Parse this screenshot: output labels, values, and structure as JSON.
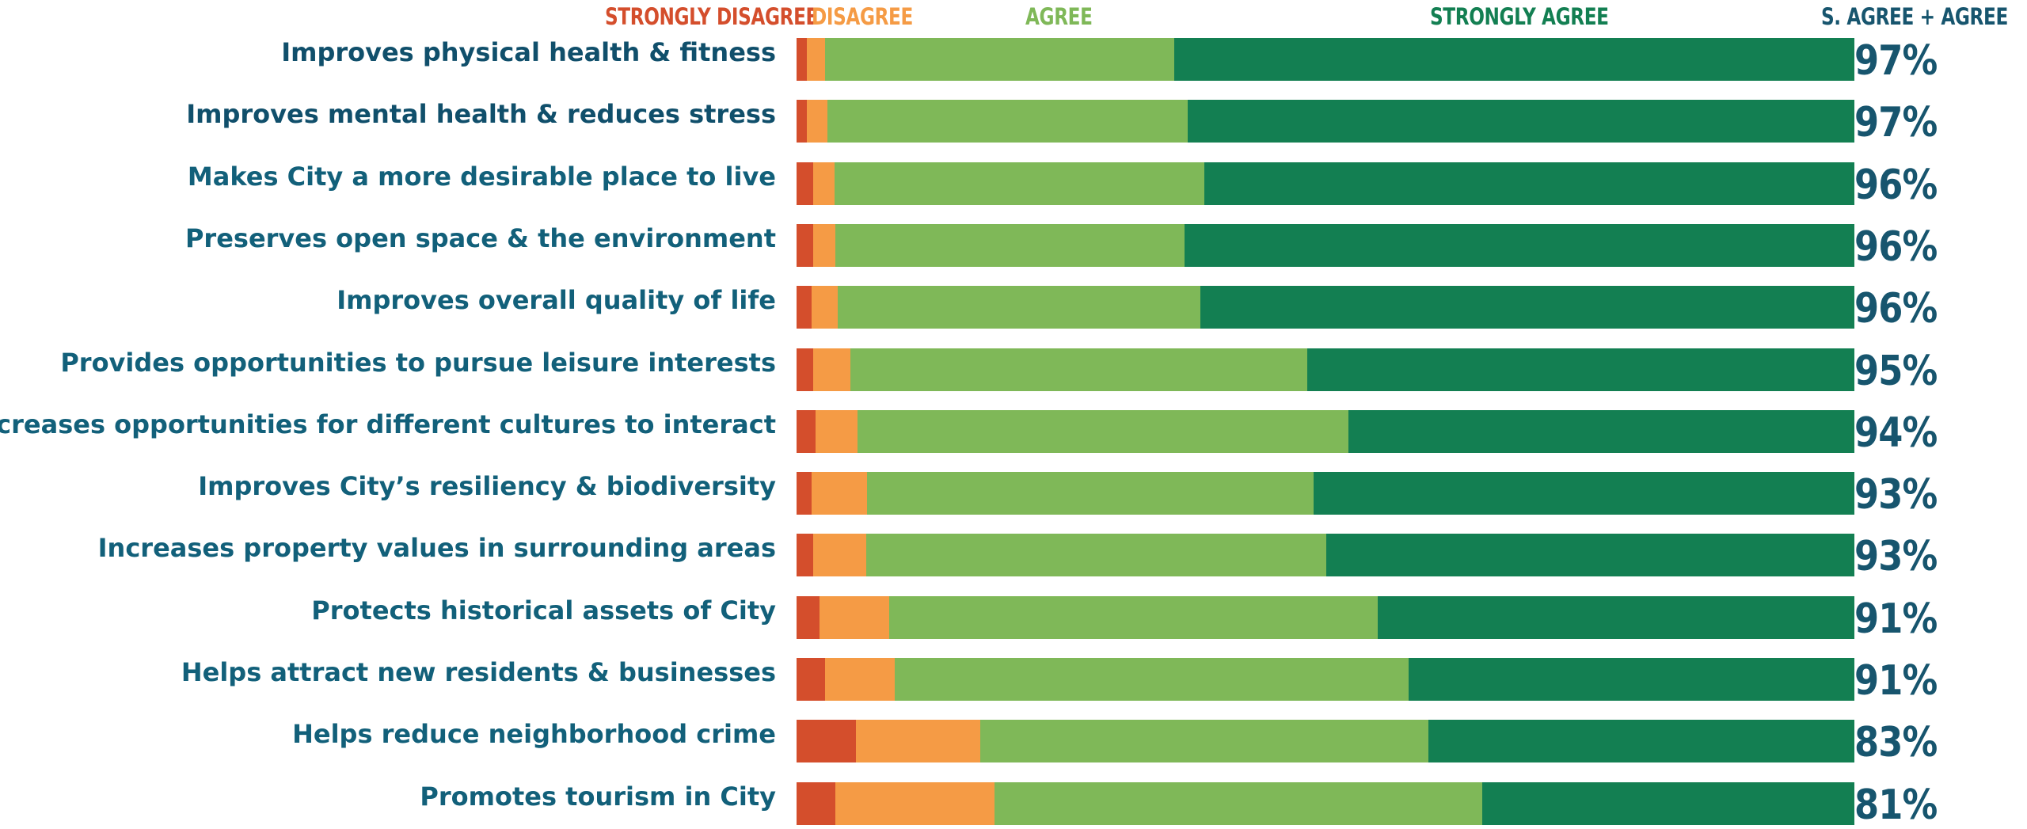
{
  "colors": {
    "strongly_disagree": "#d44e2c",
    "disagree": "#f59b45",
    "agree": "#7fb858",
    "strongly_agree": "#137f52",
    "label": "#12607a",
    "total": "#17556e",
    "total_header": "#17556e"
  },
  "legend": {
    "strongly_disagree": "STRONGLY DISAGREE",
    "disagree": "DISAGREE",
    "agree": "AGREE",
    "strongly_agree": "STRONGLY AGREE",
    "total": "S. AGREE + AGREE"
  },
  "chart_data": {
    "type": "bar",
    "orientation": "horizontal",
    "stacked": true,
    "normalized": true,
    "xlim": [
      0,
      100
    ],
    "categories": [
      "Improves physical health & fitness",
      "Improves mental health & reduces stress",
      "Makes City a more desirable place to live",
      "Preserves open space & the environment",
      "Improves overall quality of life",
      "Provides opportunities to pursue leisure interests",
      "Increases opportunities for different cultures to interact",
      "Improves City’s resiliency & biodiversity",
      "Increases property values in surrounding areas",
      "Protects historical assets of City",
      "Helps attract new residents & businesses",
      "Helps reduce neighborhood crime",
      "Promotes tourism in City"
    ],
    "series": [
      {
        "name": "STRONGLY DISAGREE",
        "values": [
          1,
          1,
          1.6,
          1.6,
          1.4,
          1.6,
          1.8,
          1.4,
          1.6,
          2.2,
          2.7,
          5.6,
          3.7
        ]
      },
      {
        "name": "DISAGREE",
        "values": [
          1.7,
          1.9,
          2,
          2.1,
          2.5,
          3.5,
          4,
          5.3,
          5,
          6.6,
          6.6,
          11.8,
          15
        ]
      },
      {
        "name": "AGREE",
        "values": [
          33,
          34.1,
          35,
          33,
          34.3,
          43.2,
          46.4,
          42.2,
          43.5,
          46.2,
          48.6,
          42.4,
          46.2
        ]
      },
      {
        "name": "STRONGLY AGREE",
        "values": [
          64.3,
          63,
          61.4,
          63.3,
          61.8,
          51.7,
          47.8,
          51.1,
          49.9,
          45,
          42.1,
          40.2,
          35.1
        ]
      }
    ],
    "totals": [
      "97%",
      "97%",
      "96%",
      "96%",
      "96%",
      "95%",
      "94%",
      "93%",
      "93%",
      "91%",
      "91%",
      "83%",
      "81%"
    ],
    "emphasized_rows": [
      0,
      1
    ]
  }
}
